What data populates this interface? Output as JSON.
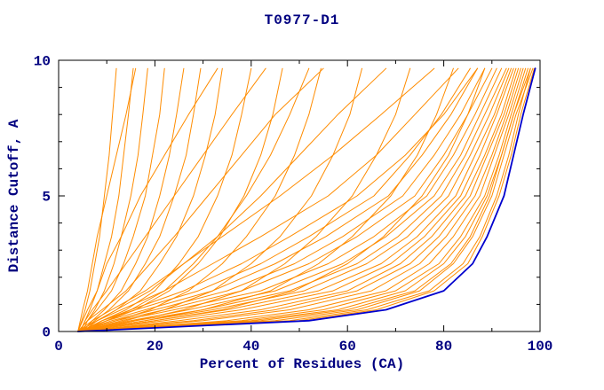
{
  "chart_data": {
    "type": "line",
    "title": "T0977-D1",
    "xlabel": "Percent of Residues (CA)",
    "ylabel": "Distance Cutoff, A",
    "xlim": [
      0,
      100
    ],
    "ylim": [
      0,
      10
    ],
    "grid": false,
    "legend": null,
    "x_ticks": {
      "major": [
        0,
        20,
        40,
        60,
        80,
        100
      ],
      "minor": [
        10,
        30,
        50,
        70,
        90
      ],
      "labels": [
        "0",
        "20",
        "40",
        "60",
        "80",
        "100"
      ]
    },
    "y_ticks": {
      "major": [
        0,
        5,
        10
      ],
      "minor": [
        1,
        2,
        3,
        4,
        6,
        7,
        8,
        9
      ],
      "labels": [
        "0",
        "5",
        "10"
      ]
    },
    "colors": {
      "models": "#ff8c00",
      "best_model": "#0000cd",
      "axis": "#000000",
      "text": "#000080"
    },
    "y_grid": [
      0,
      0.4,
      0.8,
      1.5,
      2.5,
      3.5,
      5,
      6.5,
      8,
      9.7
    ],
    "best_model_x": [
      4,
      52,
      68,
      80,
      86,
      89,
      92.5,
      94.5,
      96.5,
      99
    ],
    "models": [
      [
        4,
        48,
        64,
        77,
        84,
        87.5,
        91,
        93.5,
        95.5,
        98
      ],
      [
        4.5,
        45,
        62,
        75,
        82,
        86,
        90,
        92.5,
        95,
        98.5
      ],
      [
        3.5,
        50,
        66,
        78,
        85,
        88,
        91.5,
        94,
        96,
        98.8
      ],
      [
        5,
        40,
        58,
        72,
        80,
        84.5,
        89,
        92,
        94.5,
        97.5
      ],
      [
        4,
        38,
        55,
        70,
        79,
        83.5,
        88.5,
        91.5,
        94,
        97
      ],
      [
        4.5,
        35,
        52,
        68,
        77,
        82,
        87.5,
        90.5,
        93.5,
        96.5
      ],
      [
        4,
        42,
        60,
        74,
        81.5,
        85.5,
        89.5,
        92,
        94.5,
        98
      ],
      [
        5,
        30,
        48,
        65,
        75,
        80.5,
        86.5,
        90,
        93,
        96
      ],
      [
        4,
        28,
        45,
        62,
        73,
        79,
        85.5,
        89,
        92.5,
        95.5
      ],
      [
        4.5,
        25,
        42,
        60,
        71,
        77.5,
        84.5,
        88.5,
        92,
        95
      ],
      [
        4,
        22,
        38,
        57,
        69,
        76,
        83.5,
        87.5,
        91,
        94.5
      ],
      [
        5,
        20,
        35,
        54,
        67,
        74.5,
        82.5,
        86.5,
        90.5,
        94
      ],
      [
        4,
        18,
        32,
        51,
        64,
        72.5,
        81,
        85.5,
        89.5,
        93.5
      ],
      [
        4.5,
        16,
        30,
        48,
        62,
        70.5,
        79.5,
        84.5,
        88.5,
        93
      ],
      [
        4,
        15,
        27,
        45,
        59,
        68,
        78,
        83.5,
        87.5,
        92
      ],
      [
        5,
        13,
        24,
        42,
        56,
        65.5,
        76.5,
        82,
        86.5,
        91
      ],
      [
        4,
        12,
        22,
        38,
        52,
        62,
        74,
        80,
        85,
        90
      ],
      [
        4.5,
        11,
        20,
        35,
        49,
        59,
        71.5,
        78,
        83.5,
        88.5
      ],
      [
        4,
        10,
        18,
        32,
        45,
        55.5,
        68.5,
        75.5,
        81.5,
        87
      ],
      [
        5,
        9,
        16,
        29,
        42,
        52,
        65.5,
        73,
        79.5,
        85.5
      ],
      [
        4,
        8,
        13,
        22,
        32,
        42,
        56,
        66,
        74,
        83
      ],
      [
        4.5,
        9,
        15,
        26,
        38,
        48,
        62,
        72,
        80,
        87
      ],
      [
        4,
        7,
        11,
        18,
        26,
        34,
        46,
        57,
        67,
        78
      ],
      [
        4,
        4.8,
        5.5,
        6.5,
        7.5,
        8.5,
        9.5,
        10.5,
        11.2,
        12
      ],
      [
        4.5,
        5.5,
        6.5,
        8,
        9.5,
        11,
        12.5,
        13.5,
        14.5,
        15.5
      ],
      [
        5,
        6,
        7.5,
        9.5,
        11.5,
        13,
        15,
        16.5,
        17.5,
        18.5
      ],
      [
        4,
        6,
        8,
        11,
        13.5,
        15.5,
        18,
        19.5,
        21,
        22
      ],
      [
        5,
        7,
        9.5,
        13,
        16,
        18.5,
        21,
        23,
        24.5,
        26
      ],
      [
        4.5,
        7.5,
        10.5,
        14.5,
        18,
        21,
        24,
        26.5,
        28,
        29.5
      ],
      [
        4,
        8,
        12,
        17,
        21,
        24.5,
        28,
        30.5,
        32.5,
        34
      ],
      [
        5,
        9,
        14,
        20,
        25,
        29,
        33,
        36,
        38,
        40
      ],
      [
        4,
        10,
        16,
        23,
        29,
        33.5,
        38.5,
        42,
        44.5,
        46.5
      ],
      [
        4.5,
        12,
        19,
        27,
        34,
        39,
        45,
        49,
        52,
        54.5
      ],
      [
        4,
        14,
        22,
        32,
        40,
        46,
        52.5,
        57,
        60.5,
        63
      ],
      [
        5,
        16,
        26,
        38,
        47,
        53.5,
        61,
        66,
        70,
        73
      ],
      [
        4,
        18,
        30,
        44,
        54,
        61,
        69,
        74.5,
        78.5,
        82
      ],
      [
        4.5,
        20,
        34,
        49,
        60,
        67.5,
        75.5,
        81,
        85,
        88.5
      ],
      [
        4,
        6,
        9,
        14,
        19,
        24,
        31,
        38,
        45,
        55
      ],
      [
        5,
        8,
        12,
        19,
        26,
        33,
        42,
        50,
        58,
        68
      ],
      [
        4,
        5,
        6,
        8,
        10,
        13,
        17,
        22,
        27,
        33
      ],
      [
        4.5,
        5.5,
        7,
        10,
        14,
        18,
        24,
        30,
        36,
        43
      ],
      [
        4,
        4.5,
        5,
        6,
        7,
        8,
        10,
        12,
        14,
        16
      ],
      [
        5,
        10,
        15,
        22,
        28,
        33,
        39,
        44,
        48,
        52
      ]
    ]
  }
}
